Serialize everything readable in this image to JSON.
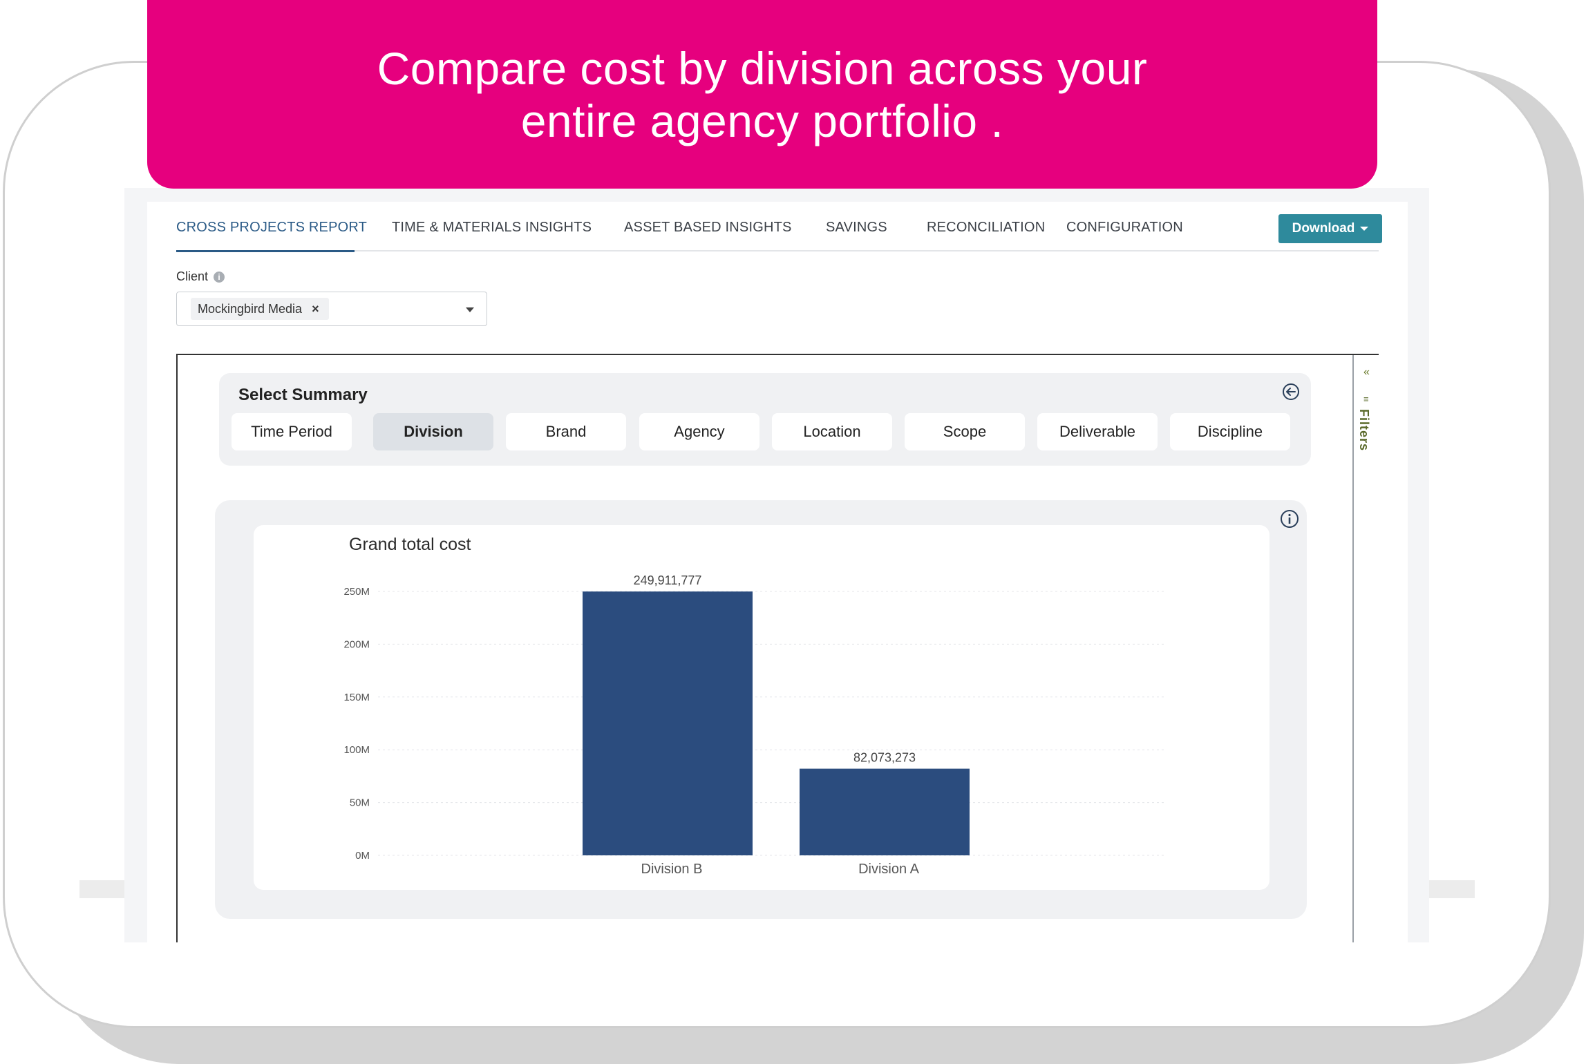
{
  "banner": {
    "line1": "Compare cost by division across your",
    "line2": "entire agency portfolio ."
  },
  "nav": {
    "tabs": [
      {
        "label": "CROSS PROJECTS REPORT",
        "active": true
      },
      {
        "label": "TIME & MATERIALS INSIGHTS",
        "active": false
      },
      {
        "label": "ASSET BASED INSIGHTS",
        "active": false
      },
      {
        "label": "SAVINGS",
        "active": false
      },
      {
        "label": "RECONCILIATION",
        "active": false
      },
      {
        "label": "CONFIGURATION",
        "active": false
      }
    ],
    "download_label": "Download"
  },
  "client": {
    "label": "Client",
    "selected": "Mockingbird Media"
  },
  "summary": {
    "title": "Select Summary",
    "options": [
      "Time Period",
      "Division",
      "Brand",
      "Agency",
      "Location",
      "Scope",
      "Deliverable",
      "Discipline"
    ],
    "active": "Division"
  },
  "filters_pane": {
    "label": "Filters"
  },
  "colors": {
    "banner": "#e6007e",
    "bar": "#2b4c7e",
    "download": "#2e8a9c",
    "active_tab": "#2a5a86"
  },
  "chart_data": {
    "type": "bar",
    "title": "Grand total cost",
    "categories": [
      "Division B",
      "Division A"
    ],
    "values": [
      249911777,
      82073273
    ],
    "data_labels": [
      "249,911,777",
      "82,073,273"
    ],
    "yticks": [
      "0M",
      "50M",
      "100M",
      "150M",
      "200M",
      "250M"
    ],
    "ylim": [
      0,
      250000000
    ],
    "grid": true,
    "xlabel": "",
    "ylabel": ""
  }
}
